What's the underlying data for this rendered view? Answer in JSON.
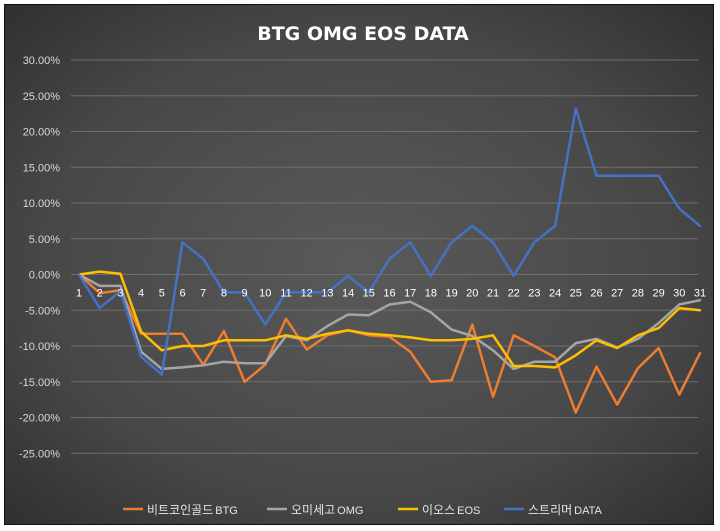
{
  "chart_data": {
    "type": "line",
    "title": "BTG OMG EOS DATA",
    "xlabel": "",
    "ylabel": "",
    "categories": [
      "1",
      "2",
      "3",
      "4",
      "5",
      "6",
      "7",
      "8",
      "9",
      "10",
      "11",
      "12",
      "13",
      "14",
      "15",
      "16",
      "17",
      "18",
      "19",
      "20",
      "21",
      "22",
      "23",
      "24",
      "25",
      "26",
      "27",
      "28",
      "29",
      "30",
      "31"
    ],
    "ylim": [
      -0.3,
      0.3
    ],
    "yticks": [
      0.3,
      0.25,
      0.2,
      0.15,
      0.1,
      0.05,
      0.0,
      -0.05,
      -0.1,
      -0.15,
      -0.2,
      -0.25
    ],
    "ytick_labels": [
      "30.00%",
      "25.00%",
      "20.00%",
      "15.00%",
      "10.00%",
      "5.00%",
      "0.00%",
      "-5.00%",
      "-10.00%",
      "-15.00%",
      "-20.00%",
      "-25.00%"
    ],
    "grid": true,
    "legend_position": "bottom",
    "series": [
      {
        "name": "비트코인골드",
        "name_suffix": "BTG",
        "color": "#ed7d31",
        "values": [
          0.0,
          -0.026,
          -0.022,
          -0.083,
          -0.083,
          -0.083,
          -0.126,
          -0.079,
          -0.15,
          -0.126,
          -0.062,
          -0.105,
          -0.085,
          -0.078,
          -0.085,
          -0.087,
          -0.108,
          -0.15,
          -0.148,
          -0.07,
          -0.171,
          -0.085,
          -0.1,
          -0.116,
          -0.193,
          -0.129,
          -0.182,
          -0.131,
          -0.103,
          -0.168,
          -0.11
        ]
      },
      {
        "name": "오미세고",
        "name_suffix": "OMG",
        "color": "#a5a5a5",
        "values": [
          0.0,
          -0.016,
          -0.016,
          -0.108,
          -0.132,
          -0.13,
          -0.127,
          -0.122,
          -0.124,
          -0.124,
          -0.086,
          -0.092,
          -0.072,
          -0.056,
          -0.057,
          -0.042,
          -0.038,
          -0.053,
          -0.077,
          -0.086,
          -0.106,
          -0.132,
          -0.122,
          -0.122,
          -0.096,
          -0.09,
          -0.102,
          -0.09,
          -0.068,
          -0.042,
          -0.036
        ]
      },
      {
        "name": "이오스",
        "name_suffix": "EOS",
        "color": "#ffc000",
        "values": [
          0.0,
          0.004,
          0.001,
          -0.08,
          -0.106,
          -0.1,
          -0.1,
          -0.092,
          -0.092,
          -0.092,
          -0.085,
          -0.09,
          -0.083,
          -0.078,
          -0.083,
          -0.085,
          -0.088,
          -0.092,
          -0.092,
          -0.09,
          -0.085,
          -0.128,
          -0.128,
          -0.13,
          -0.113,
          -0.092,
          -0.103,
          -0.085,
          -0.075,
          -0.047,
          -0.05
        ]
      },
      {
        "name": "스트리머",
        "name_suffix": "DATA",
        "color": "#4472c4",
        "values": [
          0.0,
          -0.047,
          -0.023,
          -0.115,
          -0.14,
          0.045,
          0.022,
          -0.025,
          -0.025,
          -0.07,
          -0.025,
          -0.025,
          -0.025,
          -0.002,
          -0.025,
          0.022,
          0.045,
          -0.002,
          0.045,
          0.068,
          0.045,
          -0.002,
          0.045,
          0.068,
          0.232,
          0.138,
          0.138,
          0.138,
          0.138,
          0.092,
          0.068
        ]
      }
    ]
  }
}
